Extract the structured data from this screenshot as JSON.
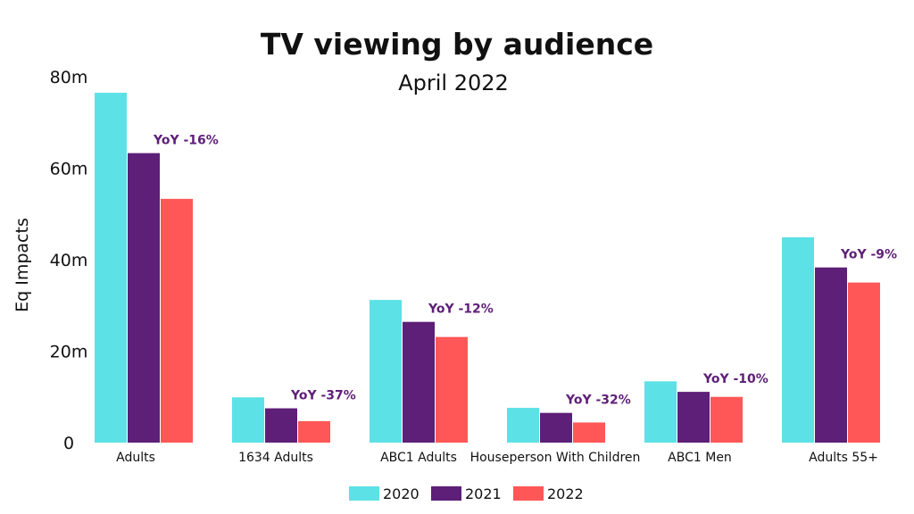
{
  "chart_data": {
    "type": "bar",
    "title": "TV viewing by audience",
    "subtitle": "April 2022",
    "ylabel": "Eq Impacts",
    "xlabel": "",
    "ylim": [
      0,
      80
    ],
    "yticks": [
      0,
      20,
      40,
      60,
      80
    ],
    "ytick_labels": [
      "0",
      "20m",
      "40m",
      "60m",
      "80m"
    ],
    "grid": false,
    "legend_position": "bottom-center",
    "categories": [
      "Adults",
      "1634 Adults",
      "ABC1 Adults",
      "Houseperson With Children",
      "ABC1 Men",
      "Adults 55+"
    ],
    "series": [
      {
        "name": "2020",
        "color": "#5ce1e6",
        "values": [
          76.5,
          9.9,
          31.2,
          7.6,
          13.4,
          44.9
        ]
      },
      {
        "name": "2021",
        "color": "#5e1f78",
        "values": [
          63.3,
          7.5,
          26.4,
          6.5,
          11.1,
          38.3
        ]
      },
      {
        "name": "2022",
        "color": "#ff5757",
        "values": [
          53.3,
          4.7,
          23.1,
          4.4,
          10.0,
          35.0
        ]
      }
    ],
    "annotations": [
      "YoY -16%",
      "YoY -37%",
      "YoY -12%",
      "YoY -32%",
      "YoY -10%",
      "YoY -9%"
    ],
    "annotation_color": "#5e1f78"
  }
}
